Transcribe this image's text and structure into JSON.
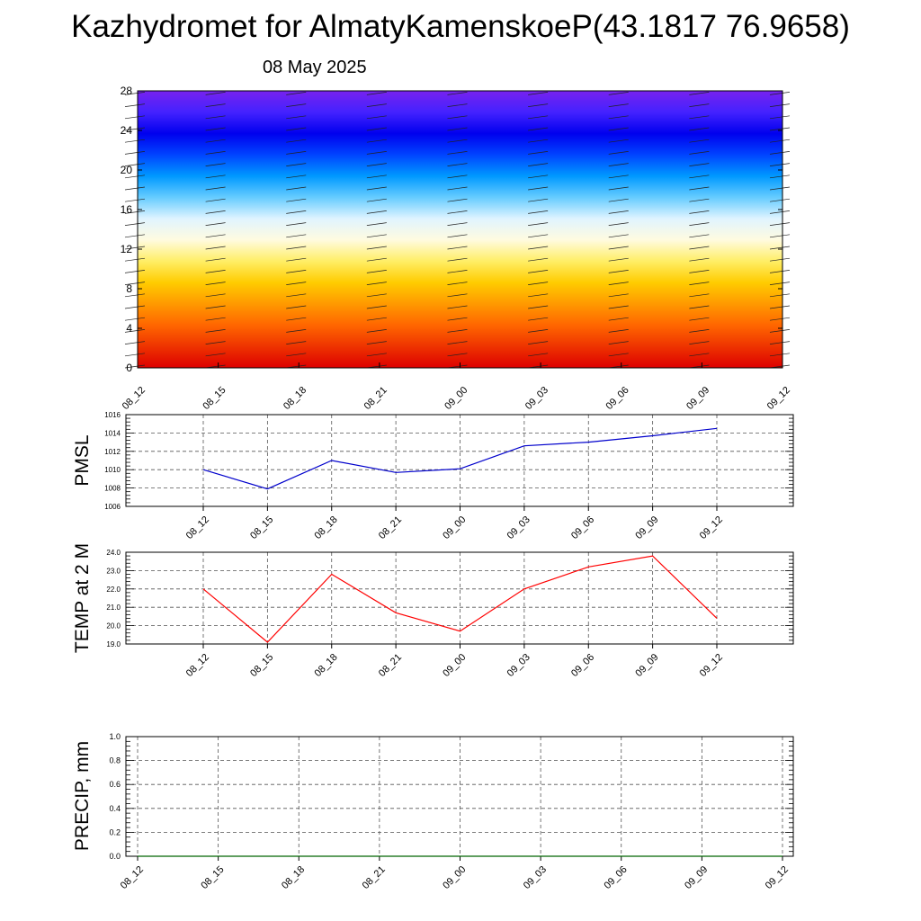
{
  "title": "Kazhydromet for AlmatyKamenskoeP(43.1817 76.9658)",
  "subtitle": "08 May 2025",
  "colors": {
    "pmsl_line": "#0000cc",
    "temp_line": "#ff0000",
    "precip_line": "#006400",
    "gradient": [
      "#dd0000",
      "#ee3300",
      "#ff6600",
      "#ff9900",
      "#ffcc00",
      "#ffee66",
      "#fffbe0",
      "#e0f4ff",
      "#66ccff",
      "#0099ff",
      "#0044ff",
      "#0000ee",
      "#4422ff",
      "#7722ee"
    ]
  },
  "chart_data": [
    {
      "type": "heatmap",
      "ylim": [
        0,
        28
      ],
      "yticks": [
        "0",
        "4",
        "8",
        "12",
        "16",
        "20",
        "24",
        "28"
      ],
      "xticks": [
        "08_12",
        "08_15",
        "08_18",
        "08_21",
        "09_00",
        "09_03",
        "09_06",
        "09_09",
        "09_12"
      ],
      "grid": false
    },
    {
      "type": "line",
      "ylabel": "PMSL",
      "ylim": [
        1006,
        1016
      ],
      "yticks": [
        "1006",
        "1008",
        "1010",
        "1012",
        "1014",
        "1016"
      ],
      "x": [
        "08_12",
        "08_15",
        "08_18",
        "08_21",
        "09_00",
        "09_03",
        "09_06",
        "09_09",
        "09_12"
      ],
      "series": [
        {
          "values": [
            1010.0,
            1007.9,
            1011.0,
            1009.7,
            1010.1,
            1012.6,
            1013.0,
            1013.7,
            1014.5
          ]
        }
      ],
      "grid": true
    },
    {
      "type": "line",
      "ylabel": "TEMP at 2 M",
      "ylim": [
        19.0,
        24.0
      ],
      "yticks": [
        "19.0",
        "20.0",
        "21.0",
        "22.0",
        "23.0",
        "24.0"
      ],
      "x": [
        "08_12",
        "08_15",
        "08_18",
        "08_21",
        "09_00",
        "09_03",
        "09_06",
        "09_09",
        "09_12"
      ],
      "series": [
        {
          "values": [
            22.0,
            19.1,
            22.8,
            20.7,
            19.7,
            22.0,
            23.2,
            23.8,
            20.4
          ]
        }
      ],
      "grid": true
    },
    {
      "type": "line",
      "ylabel": "PRECIP, mm",
      "ylim": [
        0.0,
        1.0
      ],
      "yticks": [
        "0.0",
        "0.2",
        "0.4",
        "0.6",
        "0.8",
        "1.0"
      ],
      "xticks": [
        "08_12",
        "08_15",
        "08_18",
        "08_21",
        "09_00",
        "09_03",
        "09_06",
        "09_09",
        "09_12"
      ],
      "series": [
        {
          "values": [
            0,
            0,
            0,
            0,
            0,
            0,
            0,
            0,
            0
          ]
        }
      ],
      "grid": true
    }
  ]
}
